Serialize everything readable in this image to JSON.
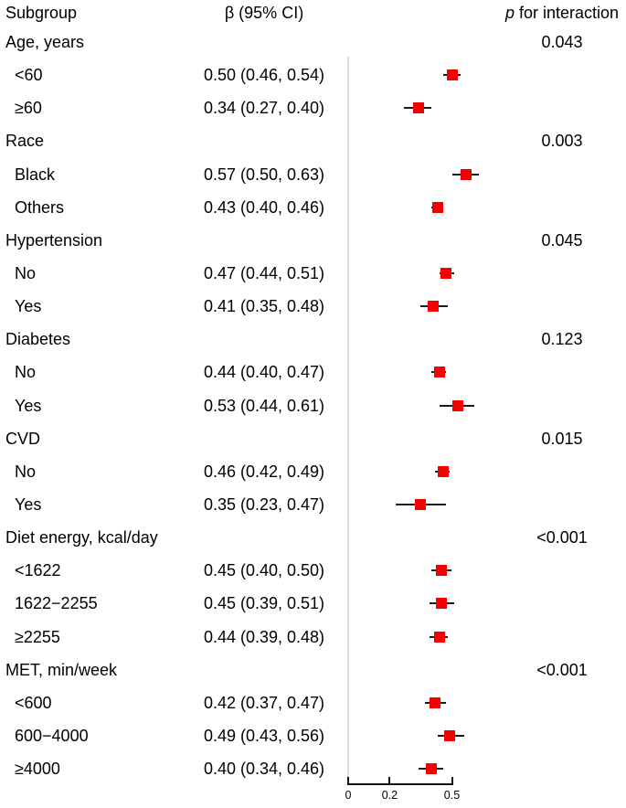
{
  "header": {
    "subgroup": "Subgroup",
    "beta_ci": "β (95% CI)",
    "p_italic": "p",
    "p_rest": " for interaction"
  },
  "chart_data": {
    "type": "forest",
    "title": "",
    "xlabel": "",
    "axis": {
      "min": 0,
      "max": 0.5,
      "ticks": [
        0,
        0.2,
        0.5
      ],
      "tick_labels": [
        "0",
        "0.2",
        "0.5"
      ]
    },
    "colors": {
      "marker": "#f40000",
      "ci_line": "#1c1c1c",
      "reference_line": "#dcdcdc"
    },
    "groups": [
      {
        "label": "Age, years",
        "p": "0.043",
        "rows": [
          {
            "label": "<60",
            "text": "0.50 (0.46, 0.54)",
            "beta": 0.5,
            "lo": 0.46,
            "hi": 0.54
          },
          {
            "label": "≥60",
            "text": "0.34 (0.27, 0.40)",
            "beta": 0.34,
            "lo": 0.27,
            "hi": 0.4
          }
        ]
      },
      {
        "label": "Race",
        "p": "0.003",
        "rows": [
          {
            "label": "Black",
            "text": "0.57 (0.50, 0.63)",
            "beta": 0.57,
            "lo": 0.5,
            "hi": 0.63
          },
          {
            "label": "Others",
            "text": "0.43 (0.40, 0.46)",
            "beta": 0.43,
            "lo": 0.4,
            "hi": 0.46
          }
        ]
      },
      {
        "label": "Hypertension",
        "p": "0.045",
        "rows": [
          {
            "label": "No",
            "text": "0.47 (0.44, 0.51)",
            "beta": 0.47,
            "lo": 0.44,
            "hi": 0.51
          },
          {
            "label": "Yes",
            "text": "0.41 (0.35, 0.48)",
            "beta": 0.41,
            "lo": 0.35,
            "hi": 0.48
          }
        ]
      },
      {
        "label": "Diabetes",
        "p": "0.123",
        "rows": [
          {
            "label": "No",
            "text": "0.44 (0.40, 0.47)",
            "beta": 0.44,
            "lo": 0.4,
            "hi": 0.47
          },
          {
            "label": "Yes",
            "text": "0.53 (0.44, 0.61)",
            "beta": 0.53,
            "lo": 0.44,
            "hi": 0.61
          }
        ]
      },
      {
        "label": "CVD",
        "p": "0.015",
        "rows": [
          {
            "label": "No",
            "text": "0.46 (0.42, 0.49)",
            "beta": 0.46,
            "lo": 0.42,
            "hi": 0.49
          },
          {
            "label": "Yes",
            "text": "0.35 (0.23, 0.47)",
            "beta": 0.35,
            "lo": 0.23,
            "hi": 0.47
          }
        ]
      },
      {
        "label": "Diet energy, kcal/day",
        "p": "<0.001",
        "rows": [
          {
            "label": "<1622",
            "text": "0.45 (0.40, 0.50)",
            "beta": 0.45,
            "lo": 0.4,
            "hi": 0.5
          },
          {
            "label": "1622−2255",
            "text": "0.45 (0.39, 0.51)",
            "beta": 0.45,
            "lo": 0.39,
            "hi": 0.51
          },
          {
            "label": "≥2255",
            "text": "0.44 (0.39, 0.48)",
            "beta": 0.44,
            "lo": 0.39,
            "hi": 0.48
          }
        ]
      },
      {
        "label": "MET, min/week",
        "p": "<0.001",
        "rows": [
          {
            "label": "<600",
            "text": "0.42 (0.37, 0.47)",
            "beta": 0.42,
            "lo": 0.37,
            "hi": 0.47
          },
          {
            "label": "600−4000",
            "text": "0.49 (0.43, 0.56)",
            "beta": 0.49,
            "lo": 0.43,
            "hi": 0.56
          },
          {
            "label": "≥4000",
            "text": "0.40 (0.34, 0.46)",
            "beta": 0.4,
            "lo": 0.34,
            "hi": 0.46
          }
        ]
      }
    ]
  }
}
